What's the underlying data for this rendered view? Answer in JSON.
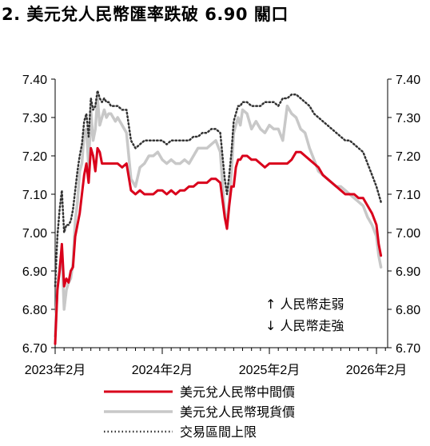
{
  "chart_data": {
    "type": "line",
    "title": "2. 美元兌人民幣匯率跌破 6.90 關口",
    "ylim": [
      6.7,
      7.4
    ],
    "y_ticks": [
      "7.40",
      "7.30",
      "7.20",
      "7.10",
      "7.00",
      "6.90",
      "6.80",
      "6.70"
    ],
    "x_ticks": [
      {
        "label": "2023年2月",
        "t": 0
      },
      {
        "label": "2024年2月",
        "t": 12
      },
      {
        "label": "2025年2月",
        "t": 24
      },
      {
        "label": "2026年2月",
        "t": 36
      }
    ],
    "annotations": [
      "↑ 人民幣走弱",
      "↓ 人民幣走強"
    ],
    "series": [
      {
        "name": "美元兌人民幣中間價",
        "color": "#d9001b",
        "x": [
          0,
          0.25,
          0.5,
          0.75,
          1,
          1.25,
          1.5,
          1.75,
          2,
          2.25,
          2.5,
          2.75,
          3,
          3.25,
          3.5,
          3.75,
          4,
          4.25,
          4.5,
          4.75,
          5,
          5.25,
          5.5,
          5.75,
          6,
          6.25,
          6.5,
          6.75,
          7,
          7.5,
          8,
          8.5,
          9,
          9.5,
          10,
          10.5,
          11,
          11.5,
          12,
          12.5,
          13,
          13.5,
          14,
          14.5,
          15,
          15.5,
          16,
          16.5,
          17,
          17.5,
          18,
          18.5,
          19,
          19.25,
          19.5,
          19.75,
          20,
          20.25,
          20.5,
          20.75,
          21,
          21.5,
          22,
          22.5,
          23,
          23.5,
          24,
          24.5,
          25,
          25.5,
          26,
          26.5,
          27,
          27.5,
          28,
          28.5,
          29,
          29.5,
          30,
          30.5,
          31,
          31.5,
          32,
          32.5,
          33,
          33.5,
          34,
          34.5,
          35,
          35.5,
          36,
          36.25,
          36.5
        ],
        "y": [
          6.71,
          6.85,
          6.9,
          6.97,
          6.86,
          6.88,
          6.87,
          6.9,
          6.91,
          6.99,
          7.02,
          7.05,
          7.1,
          7.15,
          7.18,
          7.13,
          7.22,
          7.2,
          7.16,
          7.22,
          7.21,
          7.18,
          7.18,
          7.18,
          7.18,
          7.18,
          7.18,
          7.18,
          7.18,
          7.17,
          7.18,
          7.11,
          7.1,
          7.11,
          7.1,
          7.1,
          7.1,
          7.11,
          7.11,
          7.1,
          7.11,
          7.1,
          7.11,
          7.11,
          7.12,
          7.12,
          7.13,
          7.13,
          7.13,
          7.14,
          7.14,
          7.13,
          7.04,
          7.01,
          7.07,
          7.12,
          7.12,
          7.17,
          7.19,
          7.19,
          7.2,
          7.2,
          7.19,
          7.19,
          7.18,
          7.17,
          7.18,
          7.18,
          7.18,
          7.18,
          7.18,
          7.19,
          7.21,
          7.21,
          7.2,
          7.19,
          7.18,
          7.17,
          7.15,
          7.14,
          7.13,
          7.12,
          7.11,
          7.1,
          7.1,
          7.1,
          7.09,
          7.09,
          7.07,
          7.05,
          7.02,
          6.97,
          6.94
        ]
      },
      {
        "name": "美元兌人民幣現貨價",
        "color": "#c8c8c8",
        "x": [
          0,
          0.25,
          0.5,
          0.75,
          1,
          1.25,
          1.5,
          1.75,
          2,
          2.25,
          2.5,
          2.75,
          3,
          3.25,
          3.5,
          3.75,
          4,
          4.25,
          4.5,
          4.75,
          5,
          5.25,
          5.5,
          5.75,
          6,
          6.25,
          6.5,
          6.75,
          7,
          7.5,
          8,
          8.5,
          9,
          9.5,
          10,
          10.5,
          11,
          11.5,
          12,
          12.5,
          13,
          13.5,
          14,
          14.5,
          15,
          15.5,
          16,
          16.5,
          17,
          17.5,
          18,
          18.5,
          19,
          19.25,
          19.5,
          19.75,
          20,
          20.25,
          20.5,
          20.75,
          21,
          21.5,
          22,
          22.5,
          23,
          23.5,
          24,
          24.5,
          25,
          25.5,
          26,
          26.5,
          27,
          27.5,
          28,
          28.5,
          29,
          29.5,
          30,
          30.5,
          31,
          31.5,
          32,
          32.5,
          33,
          33.5,
          34,
          34.5,
          35,
          35.5,
          36,
          36.25,
          36.5
        ],
        "y": [
          6.73,
          6.86,
          6.91,
          6.95,
          6.8,
          6.85,
          6.87,
          6.88,
          6.92,
          7.03,
          7.08,
          7.16,
          7.18,
          7.26,
          7.27,
          7.17,
          7.32,
          7.24,
          7.27,
          7.35,
          7.28,
          7.3,
          7.32,
          7.3,
          7.31,
          7.31,
          7.3,
          7.29,
          7.3,
          7.28,
          7.26,
          7.14,
          7.12,
          7.17,
          7.18,
          7.2,
          7.2,
          7.21,
          7.19,
          7.18,
          7.19,
          7.18,
          7.18,
          7.19,
          7.18,
          7.2,
          7.22,
          7.22,
          7.22,
          7.23,
          7.24,
          7.21,
          7.05,
          7.03,
          7.08,
          7.16,
          7.26,
          7.28,
          7.3,
          7.28,
          7.32,
          7.31,
          7.27,
          7.29,
          7.27,
          7.26,
          7.28,
          7.27,
          7.27,
          7.24,
          7.33,
          7.31,
          7.3,
          7.27,
          7.26,
          7.22,
          7.19,
          7.16,
          7.15,
          7.14,
          7.13,
          7.12,
          7.12,
          7.11,
          7.1,
          7.09,
          7.08,
          7.07,
          7.04,
          7.02,
          6.99,
          6.94,
          6.91
        ]
      },
      {
        "name": "交易區間上限",
        "color": "#333333",
        "x": [
          0,
          0.25,
          0.5,
          0.75,
          1,
          1.25,
          1.5,
          1.75,
          2,
          2.25,
          2.5,
          2.75,
          3,
          3.25,
          3.5,
          3.75,
          4,
          4.25,
          4.5,
          4.75,
          5,
          5.25,
          5.5,
          5.75,
          6,
          6.25,
          6.5,
          6.75,
          7,
          7.5,
          8,
          8.5,
          9,
          9.5,
          10,
          10.5,
          11,
          11.5,
          12,
          12.5,
          13,
          13.5,
          14,
          14.5,
          15,
          15.5,
          16,
          16.5,
          17,
          17.5,
          18,
          18.5,
          19,
          19.25,
          19.5,
          19.75,
          20,
          20.25,
          20.5,
          20.75,
          21,
          21.5,
          22,
          22.5,
          23,
          23.5,
          24,
          24.5,
          25,
          25.5,
          26,
          26.5,
          27,
          27.5,
          28,
          28.5,
          29,
          29.5,
          30,
          30.5,
          31,
          31.5,
          32,
          32.5,
          33,
          33.5,
          34,
          34.5,
          35,
          35.5,
          36,
          36.25,
          36.5
        ],
        "y": [
          6.86,
          6.99,
          7.06,
          7.11,
          7.0,
          7.02,
          7.02,
          7.03,
          7.06,
          7.11,
          7.16,
          7.2,
          7.23,
          7.29,
          7.31,
          7.25,
          7.35,
          7.32,
          7.33,
          7.37,
          7.35,
          7.34,
          7.35,
          7.34,
          7.34,
          7.33,
          7.33,
          7.33,
          7.33,
          7.32,
          7.32,
          7.24,
          7.22,
          7.23,
          7.24,
          7.24,
          7.24,
          7.24,
          7.24,
          7.23,
          7.24,
          7.24,
          7.24,
          7.24,
          7.24,
          7.25,
          7.25,
          7.26,
          7.26,
          7.27,
          7.27,
          7.26,
          7.14,
          7.1,
          7.15,
          7.21,
          7.29,
          7.31,
          7.33,
          7.33,
          7.34,
          7.34,
          7.33,
          7.33,
          7.33,
          7.34,
          7.34,
          7.34,
          7.33,
          7.35,
          7.35,
          7.36,
          7.36,
          7.35,
          7.34,
          7.33,
          7.31,
          7.3,
          7.29,
          7.28,
          7.27,
          7.26,
          7.25,
          7.24,
          7.24,
          7.23,
          7.22,
          7.21,
          7.18,
          7.15,
          7.12,
          7.1,
          7.08
        ]
      }
    ]
  }
}
